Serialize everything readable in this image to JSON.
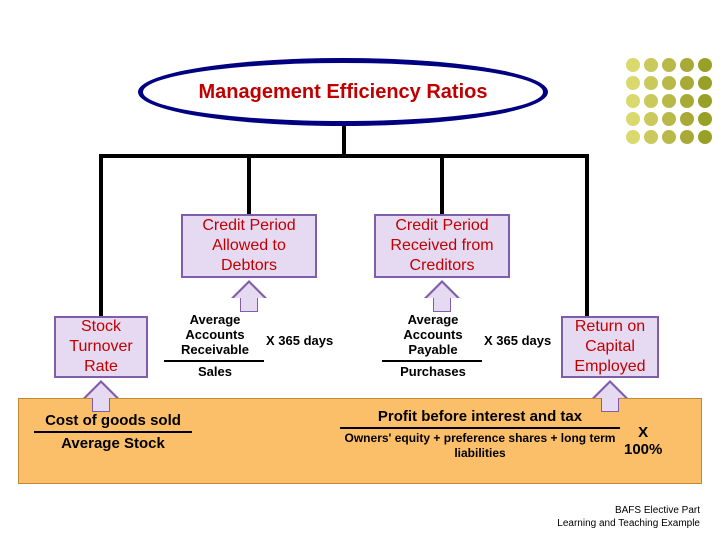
{
  "title": "Management Efficiency Ratios",
  "colors": {
    "title_text": "#c00000",
    "title_border": "#000080",
    "line": "#000000",
    "box_fill": "#e6d9f2",
    "box_border": "#7f5da8",
    "panel_fill": "#fbbf6a",
    "panel_border": "#c08a3a",
    "dot_colors": [
      "#d9d96e",
      "#c9c95c",
      "#b9b94a",
      "#a9a938",
      "#99a028"
    ]
  },
  "boxes": {
    "debtors": "Credit Period Allowed to Debtors",
    "creditors": "Credit Period Received from Creditors",
    "stock": "Stock Turnover Rate",
    "roce": "Return on Capital Employed"
  },
  "formulas": {
    "debtors": {
      "numerator": "Average Accounts Receivable",
      "denominator": "Sales",
      "multiplier": "X 365 days"
    },
    "creditors": {
      "numerator": "Average Accounts Payable",
      "denominator": "Purchases",
      "multiplier": "X 365 days"
    },
    "stock": {
      "numerator": "Cost of goods sold",
      "denominator": "Average Stock",
      "multiplier": ""
    },
    "roce": {
      "numerator": "Profit before interest and tax",
      "denominator": "Owners' equity + preference shares + long term liabilities",
      "multiplier": "X 100%"
    }
  },
  "footer": {
    "line1": "BAFS Elective Part",
    "line2": "Learning and Teaching Example"
  },
  "dot_grid": {
    "rows": 5,
    "cols": 5
  }
}
